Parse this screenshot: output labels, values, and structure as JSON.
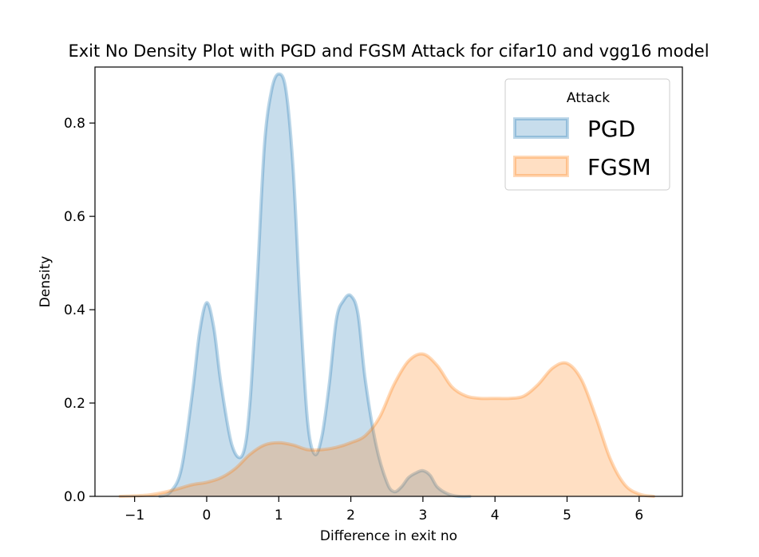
{
  "chart_data": {
    "type": "area",
    "title": "Exit No Density Plot with PGD and FGSM Attack for cifar10 and  vgg16 model",
    "xlabel": "Difference in exit no",
    "ylabel": "Density",
    "xlim": [
      -1.55,
      6.6
    ],
    "ylim": [
      0,
      0.92
    ],
    "x_ticks": [
      -1,
      0,
      1,
      2,
      3,
      4,
      5,
      6
    ],
    "x_tick_labels": [
      "−1",
      "0",
      "1",
      "2",
      "3",
      "4",
      "5",
      "6"
    ],
    "y_ticks": [
      0.0,
      0.2,
      0.4,
      0.6,
      0.8
    ],
    "y_tick_labels": [
      "0.0",
      "0.2",
      "0.4",
      "0.6",
      "0.8"
    ],
    "grid": false,
    "legend": {
      "title": "Attack",
      "placement": "top-right"
    },
    "series": [
      {
        "name": "PGD",
        "color": "#1f77b4",
        "x": [
          -0.65,
          -0.5,
          -0.35,
          -0.2,
          -0.1,
          0.0,
          0.1,
          0.2,
          0.35,
          0.5,
          0.6,
          0.7,
          0.8,
          0.9,
          1.0,
          1.1,
          1.2,
          1.3,
          1.4,
          1.5,
          1.6,
          1.7,
          1.8,
          1.9,
          2.0,
          2.1,
          2.2,
          2.35,
          2.5,
          2.6,
          2.7,
          2.8,
          2.9,
          3.0,
          3.1,
          3.2,
          3.35,
          3.5,
          3.65
        ],
        "y": [
          0.0,
          0.01,
          0.06,
          0.22,
          0.35,
          0.415,
          0.36,
          0.24,
          0.11,
          0.09,
          0.2,
          0.46,
          0.75,
          0.87,
          0.905,
          0.87,
          0.7,
          0.4,
          0.16,
          0.09,
          0.13,
          0.24,
          0.38,
          0.42,
          0.43,
          0.39,
          0.25,
          0.11,
          0.03,
          0.01,
          0.02,
          0.04,
          0.05,
          0.055,
          0.045,
          0.02,
          0.005,
          0.0,
          0.0
        ]
      },
      {
        "name": "FGSM",
        "color": "#ff7f0e",
        "x": [
          -1.2,
          -0.8,
          -0.5,
          -0.2,
          0.0,
          0.2,
          0.4,
          0.6,
          0.8,
          1.0,
          1.2,
          1.4,
          1.6,
          1.8,
          2.0,
          2.2,
          2.4,
          2.6,
          2.8,
          3.0,
          3.2,
          3.4,
          3.6,
          3.8,
          4.0,
          4.2,
          4.4,
          4.6,
          4.8,
          5.0,
          5.2,
          5.4,
          5.6,
          5.8,
          6.0,
          6.2
        ],
        "y": [
          0.0,
          0.003,
          0.012,
          0.025,
          0.03,
          0.04,
          0.06,
          0.09,
          0.11,
          0.115,
          0.11,
          0.1,
          0.1,
          0.105,
          0.115,
          0.13,
          0.17,
          0.24,
          0.29,
          0.305,
          0.28,
          0.235,
          0.215,
          0.21,
          0.21,
          0.21,
          0.215,
          0.24,
          0.275,
          0.285,
          0.25,
          0.17,
          0.08,
          0.025,
          0.005,
          0.0
        ]
      }
    ]
  }
}
